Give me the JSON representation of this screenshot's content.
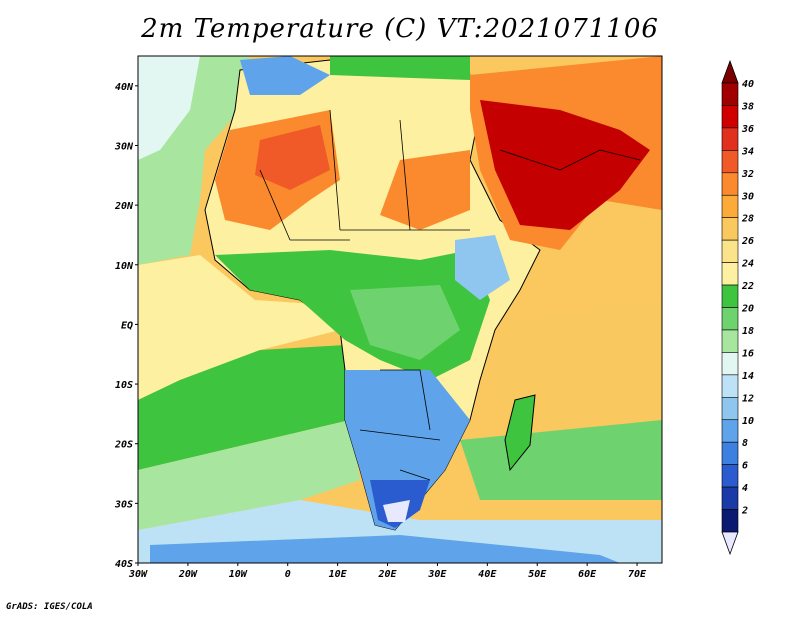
{
  "title": "2m Temperature (C) VT:2021071106",
  "footer": "GrADS: IGES/COLA",
  "map": {
    "lat_labels": [
      "40N",
      "30N",
      "20N",
      "10N",
      "EQ",
      "10S",
      "20S",
      "30S",
      "40S"
    ],
    "lon_labels": [
      "30W",
      "20W",
      "10W",
      "0",
      "10E",
      "20E",
      "30E",
      "40E",
      "50E",
      "60E",
      "70E"
    ],
    "extent": {
      "lon": [
        -30,
        75
      ],
      "lat": [
        -40,
        45
      ]
    }
  },
  "colorbar": {
    "labels": [
      "40",
      "38",
      "36",
      "34",
      "32",
      "30",
      "28",
      "26",
      "24",
      "22",
      "20",
      "18",
      "16",
      "14",
      "12",
      "10",
      "8",
      "6",
      "4",
      "2"
    ],
    "colors": [
      "#a00000",
      "#d10000",
      "#e0301e",
      "#f05a28",
      "#fa8a2d",
      "#fbab3a",
      "#f9c85f",
      "#fbe38a",
      "#fdf0a0",
      "#3ec43e",
      "#6ed36e",
      "#a8e6a0",
      "#e3f7f2",
      "#bde2f5",
      "#8ec6f0",
      "#5fa4ea",
      "#3d80e0",
      "#2a5cd0",
      "#1a3aa8",
      "#0a1a70"
    ]
  },
  "regions": [
    {
      "name": "sahara-west-hot",
      "color": "#fa8a2d"
    },
    {
      "name": "arabia-very-hot",
      "color": "#c40000"
    },
    {
      "name": "southern-africa-cool",
      "color": "#5fa4ea"
    }
  ]
}
